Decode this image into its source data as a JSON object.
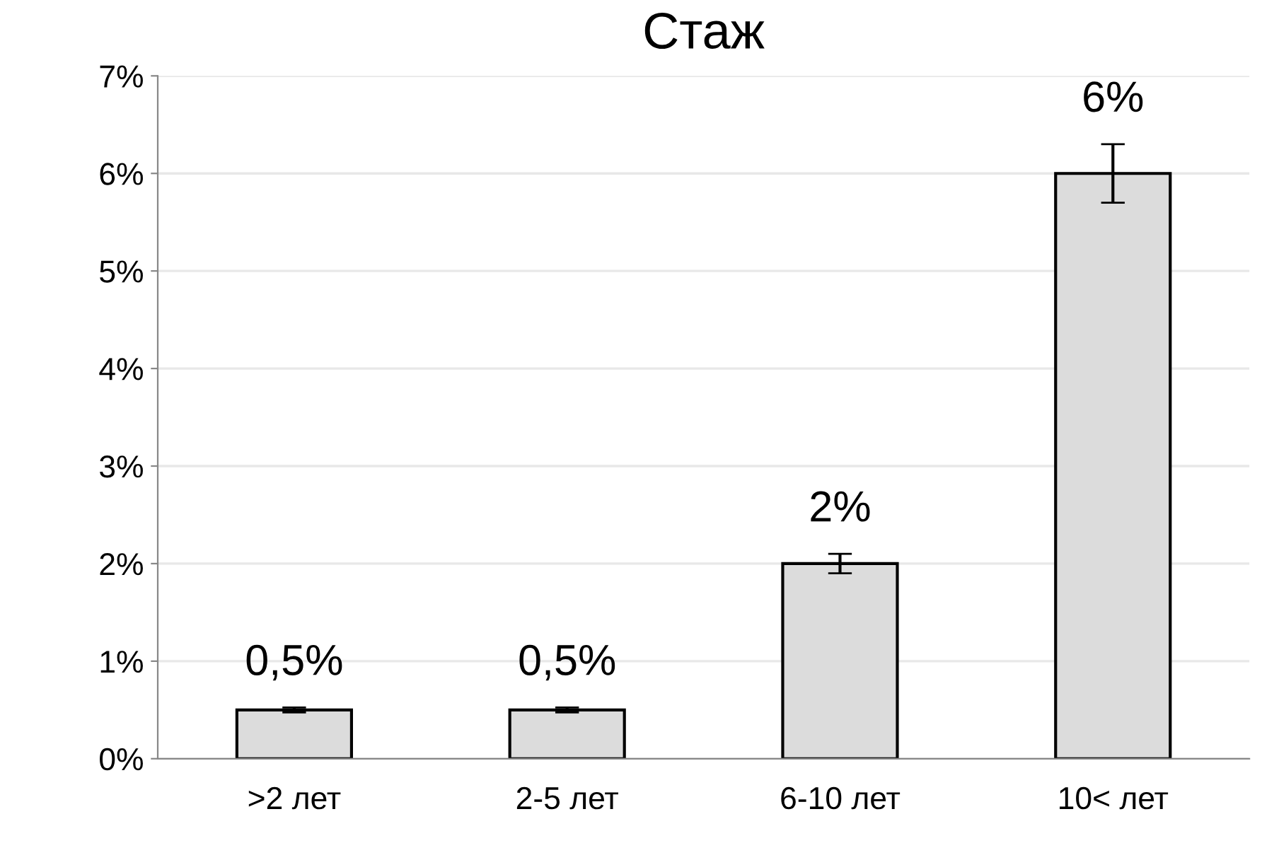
{
  "chart_data": {
    "type": "bar",
    "title": "Стаж",
    "categories": [
      ">2 лет",
      "2-5 лет",
      "6-10 лет",
      "10< лет"
    ],
    "values": [
      0.5,
      0.5,
      2,
      6
    ],
    "errors": [
      0.025,
      0.025,
      0.1,
      0.3
    ],
    "value_labels": [
      "0,5%",
      "0,5%",
      "2%",
      "6%"
    ],
    "color": "#dcdcdc",
    "ylim": [
      0,
      7
    ],
    "yticks": [
      {
        "value": 0,
        "label": "0%"
      },
      {
        "value": 1,
        "label": "1%"
      },
      {
        "value": 2,
        "label": "2%"
      },
      {
        "value": 3,
        "label": "3%"
      },
      {
        "value": 4,
        "label": "4%"
      },
      {
        "value": 5,
        "label": "5%"
      },
      {
        "value": 6,
        "label": "6%"
      },
      {
        "value": 7,
        "label": "7%"
      }
    ],
    "grid": "y"
  }
}
